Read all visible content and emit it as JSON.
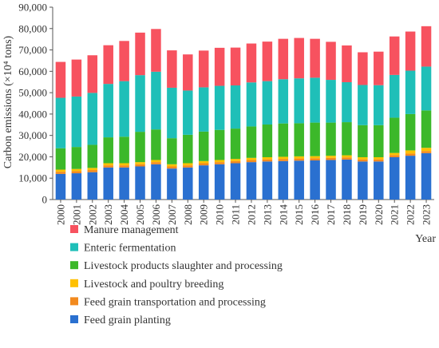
{
  "chart_data": {
    "type": "bar",
    "stacked": true,
    "ylabel": "Carbon emissions (×10⁴ tons)",
    "xlabel": "Year",
    "ylim": [
      0,
      90000
    ],
    "yticks": [
      0,
      10000,
      20000,
      30000,
      40000,
      50000,
      60000,
      70000,
      80000,
      90000
    ],
    "ytick_labels": [
      "0",
      "10,000",
      "20,000",
      "30,000",
      "40,000",
      "50,000",
      "60,000",
      "70,000",
      "80,000",
      "90,000"
    ],
    "grid": false,
    "legend_placement": "bottom",
    "categories": [
      "2000",
      "2001",
      "2002",
      "2003",
      "2004",
      "2005",
      "2006",
      "2007",
      "2008",
      "2009",
      "2010",
      "2011",
      "2012",
      "2013",
      "2014",
      "2015",
      "2016",
      "2017",
      "2018",
      "2019",
      "2020",
      "2021",
      "2022",
      "2023"
    ],
    "series": [
      {
        "name": "Feed grain planting",
        "color": "#2a70d0",
        "values": [
          12000,
          12300,
          12800,
          15000,
          15000,
          15500,
          16500,
          14500,
          15000,
          16000,
          16500,
          17000,
          17500,
          17800,
          18000,
          18200,
          18300,
          18500,
          18700,
          17800,
          17800,
          19800,
          20500,
          21700
        ]
      },
      {
        "name": "Feed grain transportation and processing",
        "color": "#f28a1e",
        "values": [
          1000,
          1000,
          1000,
          1000,
          1000,
          1000,
          1000,
          1000,
          1000,
          1000,
          1000,
          1000,
          1000,
          1000,
          1000,
          1000,
          1000,
          1000,
          1000,
          1000,
          1000,
          1000,
          1000,
          1000
        ]
      },
      {
        "name": "Livestock and poultry breeding",
        "color": "#ffc000",
        "values": [
          1000,
          1000,
          1000,
          1000,
          1000,
          1000,
          1000,
          1000,
          1000,
          1000,
          1000,
          1000,
          1000,
          1000,
          1000,
          1000,
          1000,
          1000,
          1000,
          1000,
          1000,
          1000,
          1500,
          1500
        ]
      },
      {
        "name": "Livestock products slaughter and processing",
        "color": "#3cb82a",
        "values": [
          10000,
          10300,
          10800,
          12100,
          12400,
          14200,
          14300,
          12200,
          13300,
          13800,
          14100,
          14200,
          14700,
          15300,
          15600,
          15500,
          15700,
          15500,
          15500,
          15000,
          15000,
          16500,
          17000,
          17500
        ]
      },
      {
        "name": "Enteric fermentation",
        "color": "#1fbfb8",
        "values": [
          23600,
          23600,
          24300,
          25000,
          26000,
          26500,
          27000,
          23600,
          20700,
          20700,
          20600,
          20200,
          20600,
          20300,
          20700,
          21000,
          21000,
          20000,
          18700,
          18800,
          18700,
          20000,
          20300,
          20500
        ]
      },
      {
        "name": "Manure management",
        "color": "#f7525f",
        "values": [
          16800,
          17300,
          17600,
          18100,
          18800,
          19900,
          20000,
          17500,
          16900,
          17200,
          17800,
          17700,
          18200,
          18500,
          18900,
          18900,
          18200,
          17800,
          17200,
          15300,
          15700,
          18000,
          18300,
          18900
        ]
      }
    ]
  }
}
